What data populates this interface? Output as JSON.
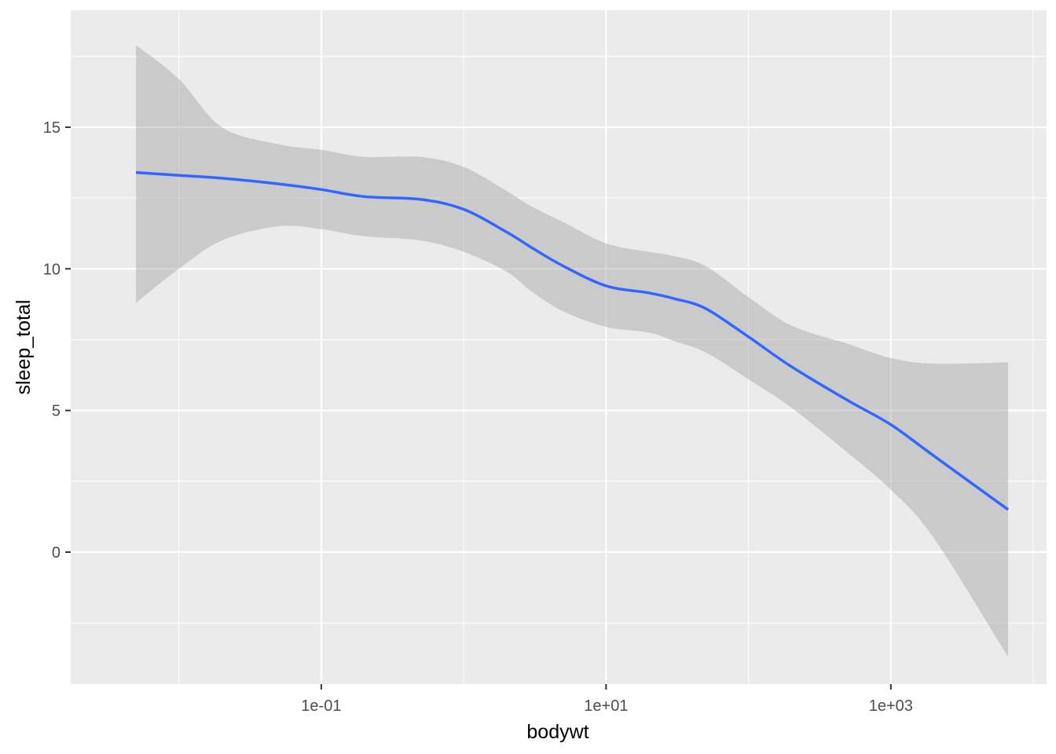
{
  "chart_data": {
    "type": "line",
    "title": "",
    "xlabel": "bodywt",
    "ylabel": "sleep_total",
    "x_scale": "log10",
    "x_ticks": [
      {
        "value": 0.1,
        "label": "1e-01"
      },
      {
        "value": 10,
        "label": "1e+01"
      },
      {
        "value": 1000,
        "label": "1e+03"
      }
    ],
    "y_ticks": [
      {
        "value": 0,
        "label": "0"
      },
      {
        "value": 5,
        "label": "5"
      },
      {
        "value": 10,
        "label": "10"
      },
      {
        "value": 15,
        "label": "15"
      }
    ],
    "xlim": [
      0.00174,
      12400
    ],
    "ylim": [
      -4.66,
      19.13
    ],
    "grid": true,
    "legend": "none",
    "colors": {
      "panel": "#ebebeb",
      "grid": "#ffffff",
      "line": "#3366ff",
      "ribbon": "#999999"
    },
    "series": [
      {
        "x": [
          0.005,
          0.01,
          0.02,
          0.05,
          0.1,
          0.2,
          0.5,
          1,
          2,
          3,
          5,
          10,
          20,
          30,
          50,
          100,
          200,
          500,
          1000,
          2000,
          6654
        ],
        "y": [
          13.4,
          13.3,
          13.2,
          13.0,
          12.8,
          12.55,
          12.45,
          12.1,
          11.3,
          10.75,
          10.1,
          9.4,
          9.15,
          8.95,
          8.6,
          7.6,
          6.55,
          5.35,
          4.5,
          3.4,
          1.5
        ],
        "ymin": [
          8.8,
          10.0,
          11.0,
          11.5,
          11.4,
          11.15,
          11.0,
          10.6,
          9.9,
          9.2,
          8.5,
          7.95,
          7.75,
          7.45,
          7.05,
          6.1,
          5.1,
          3.5,
          2.2,
          0.5,
          -3.7
        ],
        "ymax": [
          17.9,
          16.7,
          15.0,
          14.4,
          14.2,
          13.95,
          13.95,
          13.6,
          12.75,
          12.2,
          11.65,
          10.9,
          10.6,
          10.45,
          10.1,
          9.0,
          8.0,
          7.35,
          6.85,
          6.65,
          6.7
        ]
      }
    ]
  }
}
